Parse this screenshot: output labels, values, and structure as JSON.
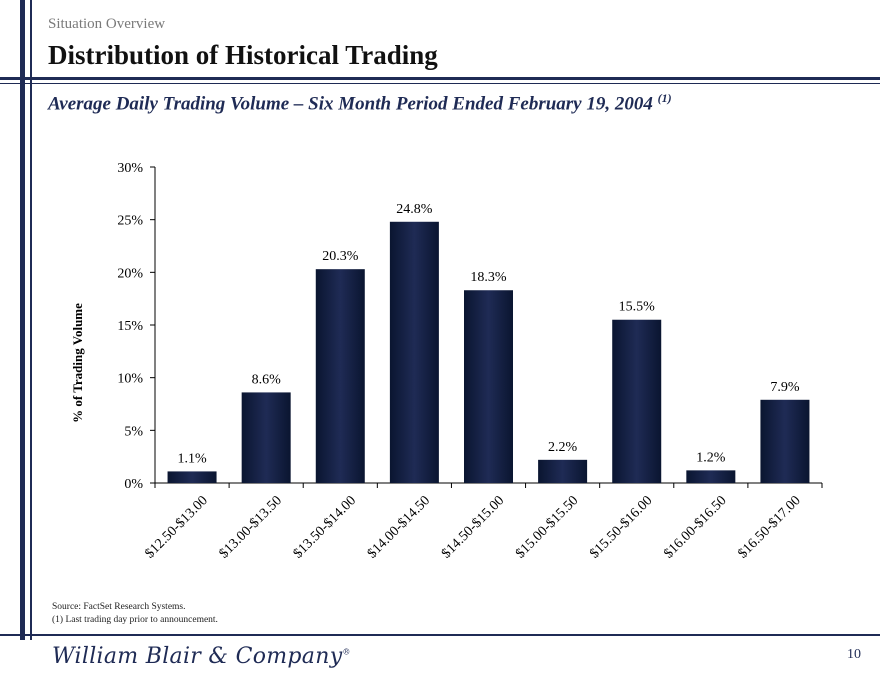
{
  "header": {
    "section": "Situation Overview",
    "title": "Distribution of Historical Trading",
    "subtitle": "Average Daily Trading Volume – Six Month Period Ended February 19, 2004",
    "subtitle_note": "(1)"
  },
  "chart_data": {
    "type": "bar",
    "title": "Average Daily Trading Volume – Six Month Period Ended February 19, 2004",
    "xlabel": "",
    "ylabel": "% of Trading Volume",
    "ylim": [
      0,
      30
    ],
    "yticks": [
      0,
      5,
      10,
      15,
      20,
      25,
      30
    ],
    "ytick_labels": [
      "0%",
      "5%",
      "10%",
      "15%",
      "20%",
      "25%",
      "30%"
    ],
    "categories": [
      "$12.50-$13.00",
      "$13.00-$13.50",
      "$13.50-$14.00",
      "$14.00-$14.50",
      "$14.50-$15.00",
      "$15.00-$15.50",
      "$15.50-$16.00",
      "$16.00-$16.50",
      "$16.50-$17.00"
    ],
    "values": [
      1.1,
      8.6,
      20.3,
      24.8,
      18.3,
      2.2,
      15.5,
      1.2,
      7.9
    ],
    "value_labels": [
      "1.1%",
      "8.6%",
      "20.3%",
      "24.8%",
      "18.3%",
      "2.2%",
      "15.5%",
      "1.2%",
      "7.9%"
    ],
    "bar_color": "#1f2b55",
    "grid": false
  },
  "footer": {
    "source": "Source: FactSet Research Systems.",
    "note": "(1) Last trading day prior to announcement.",
    "logo": "William Blair & Company",
    "logo_mark": "®",
    "page_number": "10"
  },
  "colors": {
    "accent": "#1f2b55",
    "muted": "#7a7a7a"
  }
}
